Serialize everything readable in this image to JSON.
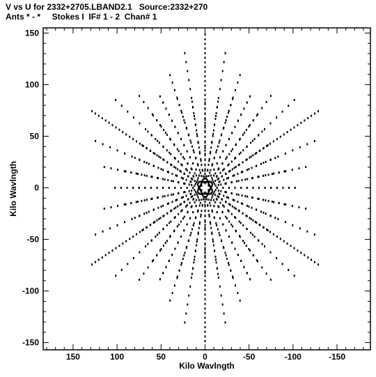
{
  "header": {
    "title_line1": "V vs U for 2332+2705.LBAND2.1   Source:2332+270",
    "title_line2": "Ants * - *     Stokes I  IF# 1 - 2  Chan# 1"
  },
  "chart_data": {
    "type": "scatter",
    "xlabel": "Kilo Wavlngth",
    "ylabel": "Kilo Wavlngth",
    "xlim": [
      184,
      -188
    ],
    "ylim": [
      -157,
      155
    ],
    "x_reversed": true,
    "xticks": [
      150,
      100,
      50,
      0,
      -50,
      -100,
      -150
    ],
    "xtick_labels": [
      "150",
      "100",
      "50",
      "0",
      "-50",
      "-100",
      "-150"
    ],
    "yticks": [
      150,
      100,
      50,
      0,
      -50,
      -100,
      -150
    ],
    "ytick_labels": [
      "150",
      "100",
      "50",
      "0",
      "-50",
      "-100",
      "-150"
    ],
    "grid": false,
    "marker_color": "#000000",
    "series": [
      {
        "arm_directions_deg": [
          90,
          210,
          330
        ],
        "arm_max_radius": 150,
        "arm_spacing": 4.5,
        "arm_count": 3,
        "track_start_angles_deg": [
          -30,
          90,
          210
        ],
        "track_sweep_deg": 120,
        "track_count": 3,
        "track_radii_arm": [
          10,
          20,
          30,
          40,
          50,
          60,
          70,
          80,
          90,
          100,
          110,
          120,
          130,
          140,
          150
        ],
        "points_per_track": 12
      }
    ]
  }
}
